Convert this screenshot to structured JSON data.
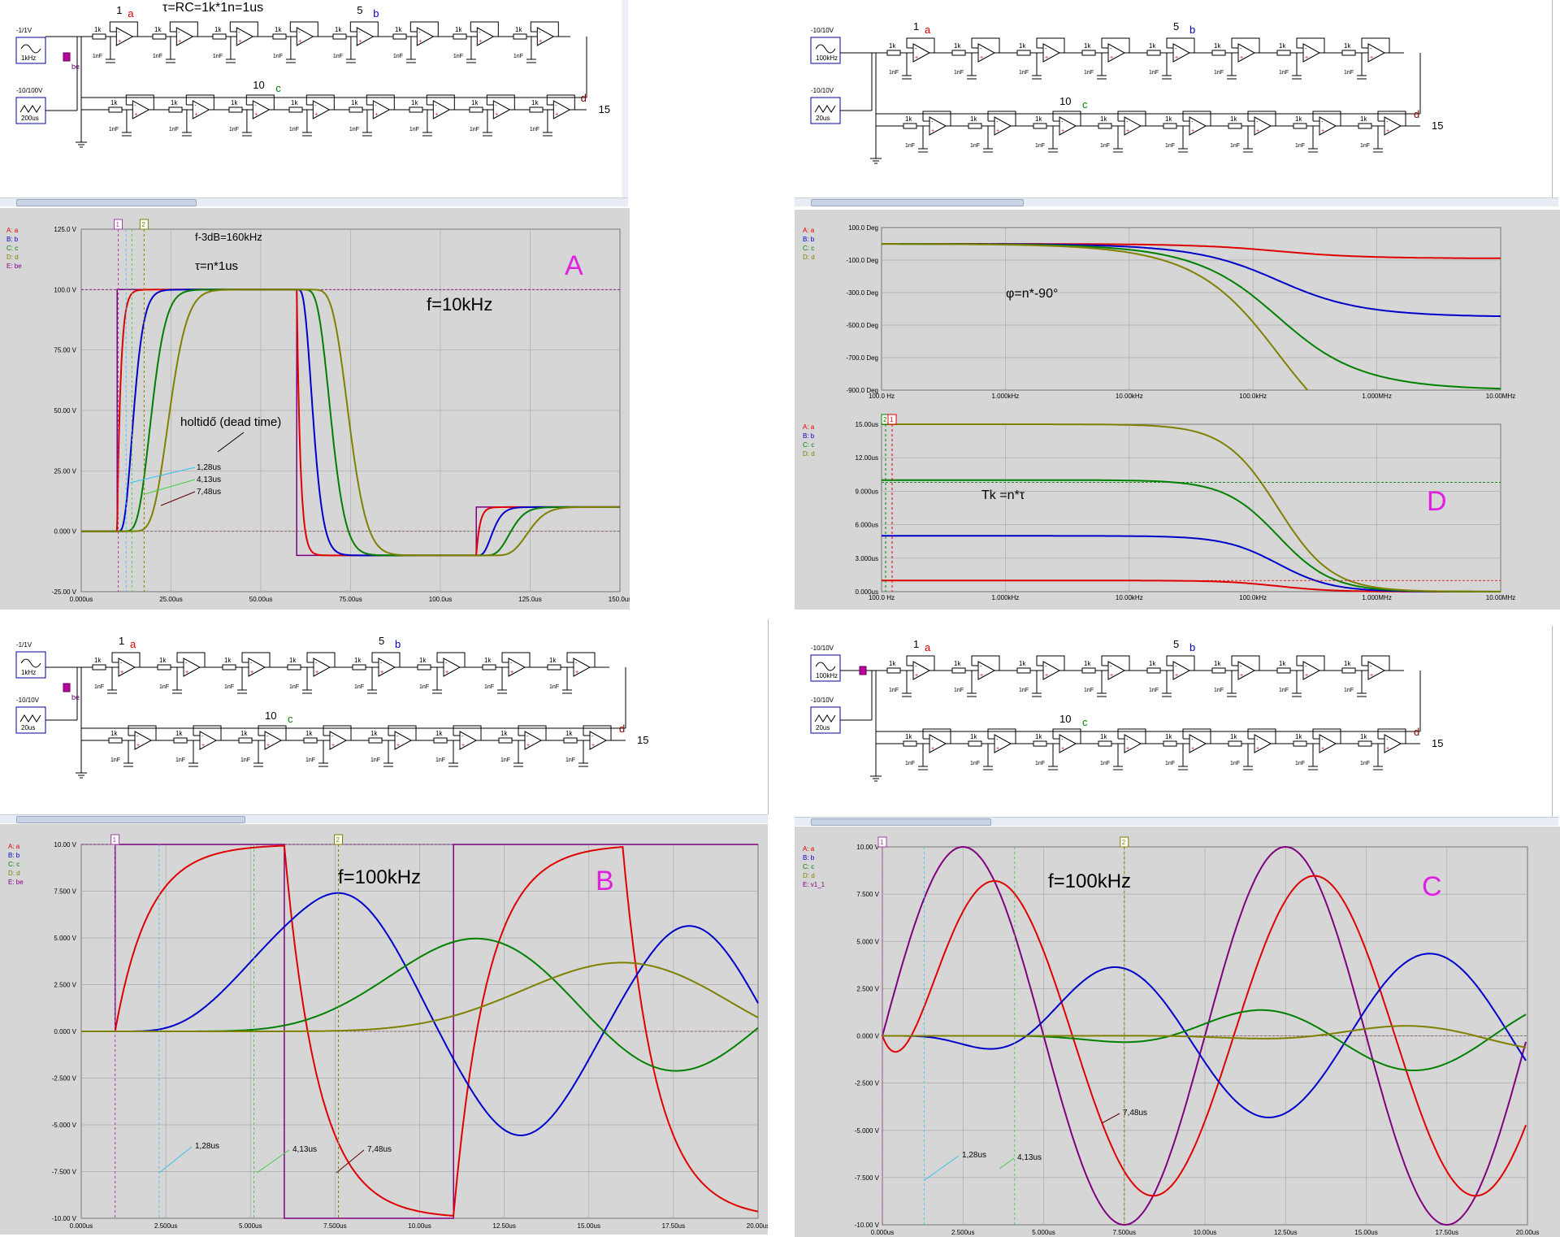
{
  "colors": {
    "a": "#e00000",
    "b": "#0000cc",
    "c": "#008000",
    "d": "#808000",
    "e": "#800080",
    "cursor": "#a040a0",
    "grid": "#ababab",
    "plotbg": "#d6d6d6",
    "annot": "#e020e0"
  },
  "schematics": {
    "top_left": {
      "title": "τ=RC=1k*1n=1us",
      "source1": "-1/1V",
      "source1_freq": "1kHz",
      "source2": "-10/100V",
      "source2_time": "200us",
      "marker_be": "be",
      "probe_e": "E"
    },
    "top_right": {
      "source1": "-10/10V",
      "source1_freq": "100kHz",
      "source2": "-10/10V",
      "source2_time": "20us"
    },
    "bottom_left": {
      "source1": "-1/1V",
      "source1_freq": "1kHz",
      "source2": "-10/10V",
      "source2_time": "20us",
      "marker_be": "be",
      "probe_e": "E"
    },
    "bottom_right": {
      "source1": "-10/10V",
      "source1_freq": "100kHz",
      "source2": "-10/10V",
      "source2_time": "20us",
      "probe_e": "E"
    },
    "labels": {
      "n1": "1",
      "n5": "5",
      "n10": "10",
      "n15": "15",
      "a": "a",
      "b": "b",
      "c": "c",
      "d": "d",
      "pa": "A",
      "pb": "B",
      "pc": "C",
      "pd": "D",
      "r": "1k",
      "cap": "1nF"
    }
  },
  "chart_data": [
    {
      "id": "A",
      "type": "line",
      "big_label": "A",
      "ylim": [
        -25,
        125
      ],
      "xlim": [
        0,
        150
      ],
      "yticks": [
        "125.0 V",
        "100.0 V",
        "75.00 V",
        "50.00 V",
        "25.00 V",
        "0.000 V",
        "-25.00 V"
      ],
      "xticks": [
        "0.000us",
        "25.00us",
        "50.00us",
        "75.00us",
        "100.0us",
        "125.0us",
        "150.0us"
      ],
      "legend": [
        "A: a",
        "B: b",
        "C: c",
        "D: d",
        "E: be"
      ],
      "annotations": {
        "f3db": "f-3dB=160kHz",
        "tau": "τ=n*1us",
        "freq": "f=10kHz",
        "deadtime": "holtidő (dead time)",
        "t1": "1,28us",
        "t2": "4,13us",
        "t3": "7,48us"
      },
      "cursors": [
        "1",
        "2"
      ]
    },
    {
      "id": "D",
      "type": "line",
      "big_label": "D",
      "phase": {
        "yticks": [
          "100.0 Deg",
          "-100.0 Deg",
          "-300.0 Deg",
          "-500.0 Deg",
          "-700.0 Deg",
          "-900.0 Deg"
        ],
        "annotation": "φ=n*-90°"
      },
      "delay": {
        "yticks": [
          "15.00us",
          "12.00us",
          "9.000us",
          "6.000us",
          "3.000us",
          "0.000us"
        ],
        "annotation": "Tk =n*τ"
      },
      "xticks": [
        "100.0 Hz",
        "1.000kHz",
        "10.00kHz",
        "100.0kHz",
        "1.000MHz",
        "10.00MHz"
      ],
      "legend": [
        "A: a",
        "B: b",
        "C: c",
        "D: d"
      ],
      "series_order": [
        1,
        5,
        10,
        15
      ],
      "cursors": [
        "2",
        "1"
      ]
    },
    {
      "id": "B",
      "type": "line",
      "big_label": "B",
      "ylim": [
        -10,
        10
      ],
      "xlim": [
        0,
        20
      ],
      "yticks": [
        "10.00 V",
        "7.500 V",
        "5.000 V",
        "2.500 V",
        "0.000 V",
        "-2.500 V",
        "-5.000 V",
        "-7.500 V",
        "-10.00 V"
      ],
      "xticks": [
        "0.000us",
        "2.500us",
        "5.000us",
        "7.500us",
        "10.00us",
        "12.50us",
        "15.00us",
        "17.50us",
        "20.00us"
      ],
      "legend": [
        "A: a",
        "B: b",
        "C: c",
        "D: d",
        "E: be"
      ],
      "annotations": {
        "freq": "f=100kHz",
        "t1": "1,28us",
        "t2": "4,13us",
        "t3": "7,48us"
      },
      "cursors": [
        "1",
        "2"
      ]
    },
    {
      "id": "C",
      "type": "line",
      "big_label": "C",
      "ylim": [
        -10,
        10
      ],
      "xlim": [
        0,
        20
      ],
      "yticks": [
        "10.00 V",
        "7.500 V",
        "5.000 V",
        "2.500 V",
        "0.000 V",
        "-2.500 V",
        "-5.000 V",
        "-7.500 V",
        "-10.00 V"
      ],
      "xticks": [
        "0.000us",
        "2.500us",
        "5.000us",
        "7.500us",
        "10.00us",
        "12.50us",
        "15.00us",
        "17.50us",
        "20.00us"
      ],
      "legend": [
        "A: a",
        "B: b",
        "C: c",
        "D: d",
        "E: v1_1"
      ],
      "annotations": {
        "freq": "f=100kHz",
        "t1": "1,28us",
        "t2": "4,13us",
        "t3": "7,48us"
      },
      "cursors": [
        "1",
        "2"
      ]
    }
  ]
}
